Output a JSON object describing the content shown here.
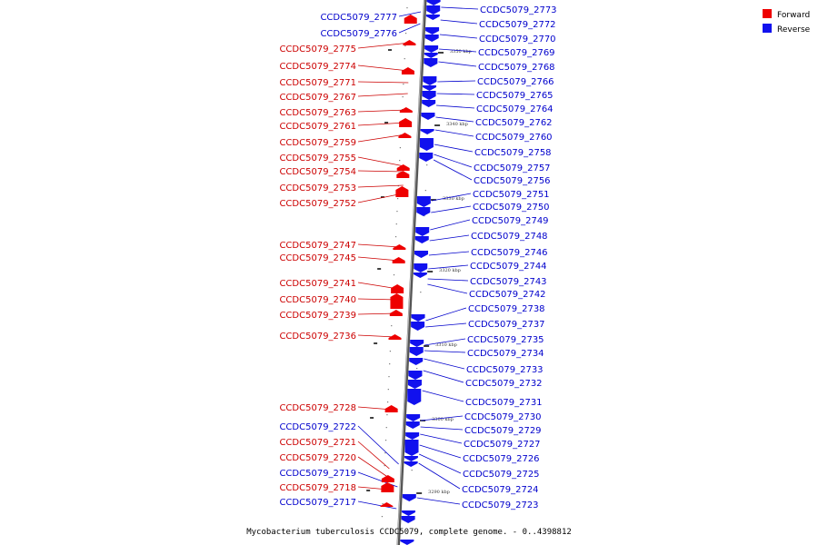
{
  "legend": {
    "forward_label": "Forward",
    "reverse_label": "Reverse",
    "forward_color": "#ee0000",
    "reverse_color": "#1111ee"
  },
  "caption": "Mycobacterium tuberculosis CCDC5079, complete genome. - 0..4398812",
  "scale_ticks": [
    "3350 kbp",
    "3340 kbp",
    "3330 kbp",
    "3320 kbp",
    "3310 kbp",
    "3300 kbp",
    "3290 kbp"
  ],
  "forward_genes": [
    "CCDC5079_2775",
    "CCDC5079_2774",
    "CCDC5079_2771",
    "CCDC5079_2767",
    "CCDC5079_2763",
    "CCDC5079_2761",
    "CCDC5079_2759",
    "CCDC5079_2755",
    "CCDC5079_2754",
    "CCDC5079_2753",
    "CCDC5079_2752",
    "CCDC5079_2747",
    "CCDC5079_2745",
    "CCDC5079_2741",
    "CCDC5079_2740",
    "CCDC5079_2739",
    "CCDC5079_2736",
    "CCDC5079_2728",
    "CCDC5079_2721",
    "CCDC5079_2720",
    "CCDC5079_2718"
  ],
  "reverse_genes_left": [
    "CCDC5079_2777",
    "CCDC5079_2776",
    "CCDC5079_2722",
    "CCDC5079_2719",
    "CCDC5079_2717"
  ],
  "reverse_genes_right": [
    "CCDC5079_2773",
    "CCDC5079_2772",
    "CCDC5079_2770",
    "CCDC5079_2769",
    "CCDC5079_2768",
    "CCDC5079_2766",
    "CCDC5079_2765",
    "CCDC5079_2764",
    "CCDC5079_2762",
    "CCDC5079_2760",
    "CCDC5079_2758",
    "CCDC5079_2757",
    "CCDC5079_2756",
    "CCDC5079_2751",
    "CCDC5079_2750",
    "CCDC5079_2749",
    "CCDC5079_2748",
    "CCDC5079_2746",
    "CCDC5079_2744",
    "CCDC5079_2743",
    "CCDC5079_2742",
    "CCDC5079_2738",
    "CCDC5079_2737",
    "CCDC5079_2735",
    "CCDC5079_2734",
    "CCDC5079_2733",
    "CCDC5079_2732",
    "CCDC5079_2731",
    "CCDC5079_2730",
    "CCDC5079_2729",
    "CCDC5079_2727",
    "CCDC5079_2726",
    "CCDC5079_2725",
    "CCDC5079_2724",
    "CCDC5079_2723"
  ]
}
